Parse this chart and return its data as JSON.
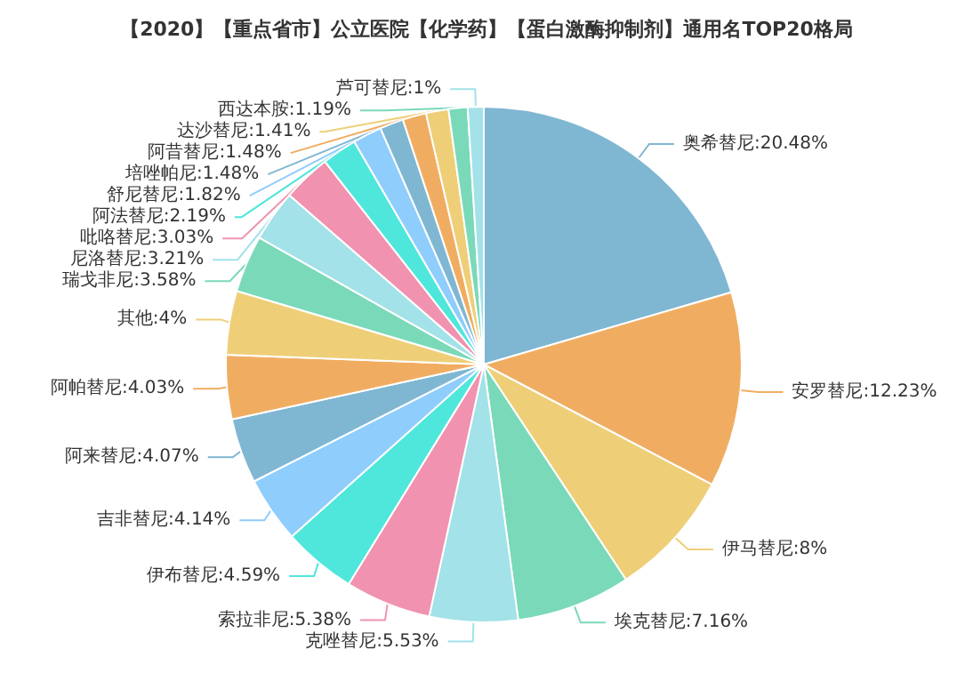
{
  "chart_data": {
    "type": "pie",
    "title": "【2020】【重点省市】公立医院【化学药】【蛋白激酶抑制剂】通用名TOP20格局",
    "categories": [
      "奥希替尼",
      "安罗替尼",
      "伊马替尼",
      "埃克替尼",
      "克唑替尼",
      "索拉非尼",
      "伊布替尼",
      "吉非替尼",
      "阿来替尼",
      "阿帕替尼",
      "其他",
      "瑞戈非尼",
      "尼洛替尼",
      "吡咯替尼",
      "阿法替尼",
      "舒尼替尼",
      "培唑帕尼",
      "阿昔替尼",
      "达沙替尼",
      "西达本胺",
      "芦可替尼"
    ],
    "values": [
      20.48,
      12.23,
      8,
      7.16,
      5.53,
      5.38,
      4.59,
      4.14,
      4.07,
      4.03,
      4,
      3.58,
      3.21,
      3.03,
      2.19,
      1.82,
      1.48,
      1.48,
      1.41,
      1.19,
      1
    ],
    "value_labels": [
      "20.48%",
      "12.23%",
      "8%",
      "7.16%",
      "5.53%",
      "5.38%",
      "4.59%",
      "4.14%",
      "4.07%",
      "4.03%",
      "4%",
      "3.58%",
      "3.21%",
      "3.03%",
      "2.19%",
      "1.82%",
      "1.48%",
      "1.48%",
      "1.41%",
      "1.19%",
      "1%"
    ],
    "colors": [
      "#7fb7d2",
      "#f0ad62",
      "#eecf78",
      "#7ad9b9",
      "#a2e2e8",
      "#f092b0",
      "#4fe6dc",
      "#8fcdfd",
      "#7fb7d2",
      "#f0ad62",
      "#eecf78",
      "#7ad9b9",
      "#a2e2e8",
      "#f092b0",
      "#4fe6dc",
      "#8fcdfd",
      "#7fb7d2",
      "#f0ad62",
      "#eecf78",
      "#7ad9b9",
      "#a2e2e8"
    ],
    "legend": false
  }
}
